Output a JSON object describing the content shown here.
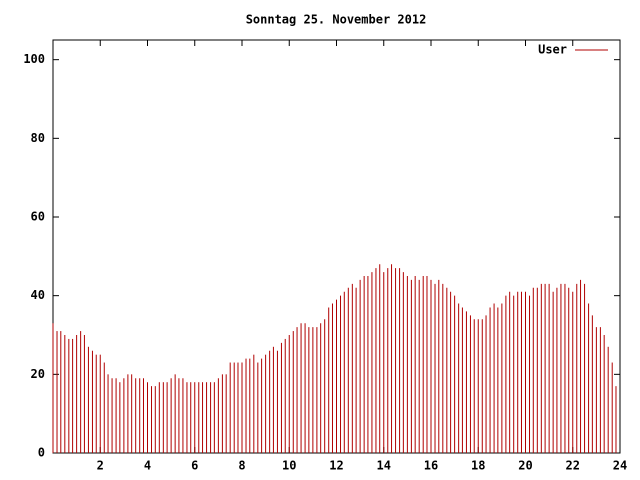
{
  "chart_data": {
    "type": "impulses",
    "title": "Sonntag 25. November 2012",
    "xlim": [
      0,
      24
    ],
    "xticks": [
      2,
      4,
      6,
      8,
      10,
      12,
      14,
      16,
      18,
      20,
      22,
      24
    ],
    "ylim": [
      0,
      105
    ],
    "yticks": [
      0,
      20,
      40,
      60,
      80,
      100
    ],
    "legend": "top-right",
    "series": [
      {
        "name": "User",
        "color": "#b00000",
        "x": [
          0,
          0.17,
          0.33,
          0.5,
          0.67,
          0.83,
          1,
          1.17,
          1.33,
          1.5,
          1.67,
          1.83,
          2,
          2.17,
          2.33,
          2.5,
          2.67,
          2.83,
          3,
          3.17,
          3.33,
          3.5,
          3.67,
          3.83,
          4,
          4.17,
          4.33,
          4.5,
          4.67,
          4.83,
          5,
          5.17,
          5.33,
          5.5,
          5.67,
          5.83,
          6,
          6.17,
          6.33,
          6.5,
          6.67,
          6.83,
          7,
          7.17,
          7.33,
          7.5,
          7.67,
          7.83,
          8,
          8.17,
          8.33,
          8.5,
          8.67,
          8.83,
          9,
          9.17,
          9.33,
          9.5,
          9.67,
          9.83,
          10,
          10.17,
          10.33,
          10.5,
          10.67,
          10.83,
          11,
          11.17,
          11.33,
          11.5,
          11.67,
          11.83,
          12,
          12.17,
          12.33,
          12.5,
          12.67,
          12.83,
          13,
          13.17,
          13.33,
          13.5,
          13.67,
          13.83,
          14,
          14.17,
          14.33,
          14.5,
          14.67,
          14.83,
          15,
          15.17,
          15.33,
          15.5,
          15.67,
          15.83,
          16,
          16.17,
          16.33,
          16.5,
          16.67,
          16.83,
          17,
          17.17,
          17.33,
          17.5,
          17.67,
          17.83,
          18,
          18.17,
          18.33,
          18.5,
          18.67,
          18.83,
          19,
          19.17,
          19.33,
          19.5,
          19.67,
          19.83,
          20,
          20.17,
          20.33,
          20.5,
          20.67,
          20.83,
          21,
          21.17,
          21.33,
          21.5,
          21.67,
          21.83,
          22,
          22.17,
          22.33,
          22.5,
          22.67,
          22.83,
          23,
          23.17,
          23.33,
          23.5,
          23.67,
          23.83
        ],
        "values": [
          33,
          31,
          31,
          30,
          29,
          29,
          30,
          31,
          30,
          27,
          26,
          25,
          25,
          23,
          20,
          19,
          19,
          18,
          19,
          20,
          20,
          19,
          19,
          19,
          18,
          17,
          17,
          18,
          18,
          18,
          19,
          20,
          19,
          19,
          18,
          18,
          18,
          18,
          18,
          18,
          18,
          18,
          19,
          20,
          20,
          23,
          23,
          23,
          23,
          24,
          24,
          25,
          23,
          24,
          25,
          26,
          27,
          26,
          28,
          29,
          30,
          31,
          32,
          33,
          33,
          32,
          32,
          32,
          33,
          34,
          37,
          38,
          39,
          40,
          41,
          42,
          43,
          42,
          44,
          45,
          45,
          46,
          47,
          48,
          46,
          47,
          48,
          47,
          47,
          46,
          45,
          44,
          45,
          44,
          45,
          45,
          44,
          43,
          44,
          43,
          42,
          41,
          40,
          38,
          37,
          36,
          35,
          34,
          34,
          34,
          35,
          37,
          38,
          37,
          38,
          40,
          41,
          40,
          41,
          41,
          41,
          40,
          42,
          42,
          43,
          43,
          43,
          41,
          42,
          43,
          43,
          42,
          41,
          43,
          44,
          43,
          38,
          35,
          32,
          32,
          30,
          27,
          23,
          17
        ]
      }
    ]
  }
}
